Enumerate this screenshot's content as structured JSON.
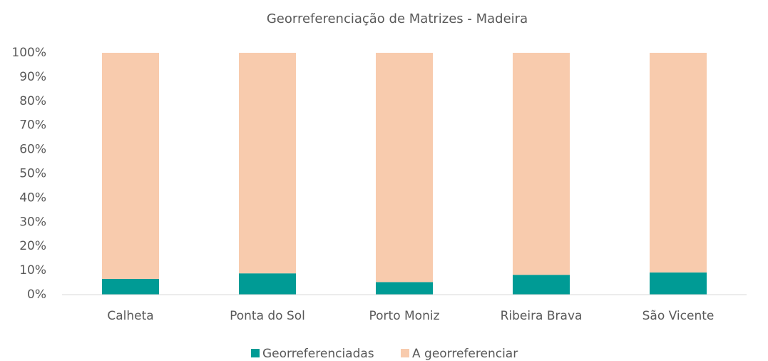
{
  "chart_data": {
    "type": "stacked_bar",
    "title": "Georreferenciação de Matrizes - Madeira",
    "categories": [
      "Calheta",
      "Ponta do Sol",
      "Porto Moniz",
      "Ribeira Brava",
      "São Vicente"
    ],
    "series": [
      {
        "name": "Georreferenciadas",
        "color": "#009b95",
        "values": [
          6.5,
          8.8,
          5.2,
          8.2,
          9.2
        ]
      },
      {
        "name": "A georreferenciar",
        "color": "#f8cbad",
        "values": [
          93.5,
          91.2,
          94.8,
          91.8,
          90.8
        ]
      }
    ],
    "ylim": [
      0,
      100
    ],
    "yticks": [
      {
        "value": 0,
        "label": "0%"
      },
      {
        "value": 10,
        "label": "10%"
      },
      {
        "value": 20,
        "label": "20%"
      },
      {
        "value": 30,
        "label": "30%"
      },
      {
        "value": 40,
        "label": "40%"
      },
      {
        "value": 50,
        "label": "50%"
      },
      {
        "value": 60,
        "label": "60%"
      },
      {
        "value": 70,
        "label": "70%"
      },
      {
        "value": 80,
        "label": "80%"
      },
      {
        "value": 90,
        "label": "90%"
      },
      {
        "value": 100,
        "label": "100%"
      }
    ],
    "legend": "bottom"
  }
}
